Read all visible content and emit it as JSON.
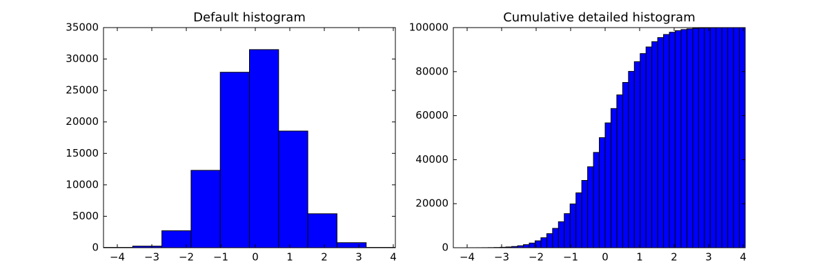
{
  "chart_data": [
    {
      "type": "histogram",
      "title": "Default histogram",
      "color": "#0000ff",
      "cumulative": false,
      "bins": [
        -4.4,
        -3.554,
        -2.708,
        -1.862,
        -1.016,
        -0.17,
        0.676,
        1.522,
        2.368,
        3.214,
        4.06
      ],
      "values": [
        50,
        250,
        2700,
        12300,
        27900,
        31500,
        18550,
        5400,
        800,
        50
      ],
      "xlim": [
        -4.4,
        4.06
      ],
      "ylim": [
        0,
        35000
      ],
      "xticks": [
        {
          "value": -4,
          "label": "−4"
        },
        {
          "value": -3,
          "label": "−3"
        },
        {
          "value": -2,
          "label": "−2"
        },
        {
          "value": -1,
          "label": "−1"
        },
        0,
        1,
        2,
        3,
        4
      ],
      "yticks": [
        0,
        5000,
        10000,
        15000,
        20000,
        25000,
        30000,
        35000
      ]
    },
    {
      "type": "histogram",
      "title": "Cumulative detailed histogram",
      "color": "#0000ff",
      "cumulative": true,
      "bins": [
        -4.4,
        -4.231,
        -4.062,
        -3.892,
        -3.723,
        -3.554,
        -3.385,
        -3.215,
        -3.046,
        -2.877,
        -2.708,
        -2.538,
        -2.369,
        -2.2,
        -2.031,
        -1.862,
        -1.692,
        -1.523,
        -1.354,
        -1.185,
        -1.016,
        -0.846,
        -0.677,
        -0.508,
        -0.338,
        -0.169,
        0.0,
        0.169,
        0.338,
        0.508,
        0.677,
        0.846,
        1.016,
        1.185,
        1.354,
        1.523,
        1.692,
        1.862,
        2.031,
        2.2,
        2.369,
        2.538,
        2.708,
        2.877,
        3.046,
        3.215,
        3.385,
        3.554,
        3.723,
        3.892,
        4.06
      ],
      "values": [
        1,
        2,
        5,
        10,
        19,
        36,
        65,
        116,
        201,
        339,
        557,
        892,
        1390,
        2113,
        3130,
        4532,
        6388,
        8788,
        11800,
        15480,
        19880,
        24920,
        30570,
        36770,
        43290,
        50000,
        56710,
        63230,
        69430,
        75080,
        80120,
        84520,
        88200,
        91210,
        93610,
        95470,
        96870,
        97890,
        98610,
        99110,
        99440,
        99660,
        99800,
        99880,
        99935,
        99964,
        99981,
        99990,
        99995,
        100000
      ],
      "xlim": [
        -4.4,
        4.06
      ],
      "ylim": [
        0,
        100000
      ],
      "xticks": [
        {
          "value": -4,
          "label": "−4"
        },
        {
          "value": -3,
          "label": "−3"
        },
        {
          "value": -2,
          "label": "−2"
        },
        {
          "value": -1,
          "label": "−1"
        },
        0,
        1,
        2,
        3,
        4
      ],
      "yticks": [
        0,
        20000,
        40000,
        60000,
        80000,
        100000
      ]
    }
  ]
}
